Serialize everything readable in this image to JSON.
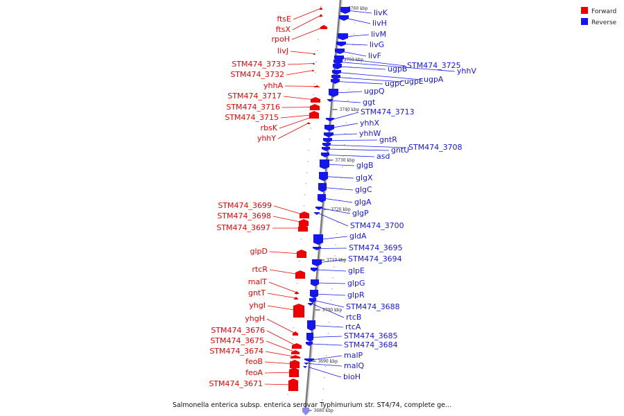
{
  "legend": {
    "forward_label": "Forward",
    "reverse_label": "Reverse",
    "forward_color": "#ee0000",
    "reverse_color": "#1515ee"
  },
  "caption": "Salmonella enterica subsp. enterica serovar Typhimurium str. ST4/74, complete ge...",
  "ticks": [
    "3760 kbp",
    "3750 kbp",
    "3740 kbp",
    "3730 kbp",
    "3720 kbp",
    "3710 kbp",
    "3700 kbp",
    "3690 kbp",
    "3680 kbp"
  ],
  "reverse_genes": [
    "livK",
    "livH",
    "livM",
    "livG",
    "livF",
    "STM474_3725",
    "yhhV",
    "ugpB",
    "ugpA",
    "ugpE",
    "ugpC",
    "ugpQ",
    "ggt",
    "STM474_3713",
    "yhhX",
    "yhhW",
    "gntR",
    "STM474_3708",
    "gntU",
    "asd",
    "glgB",
    "glgX",
    "glgC",
    "glgA",
    "glgP",
    "STM474_3700",
    "gldA",
    "STM474_3695",
    "STM474_3694",
    "glpE",
    "glpG",
    "glpR",
    "STM474_3688",
    "rtcB",
    "rtcA",
    "STM474_3685",
    "STM474_3684",
    "malP",
    "malQ",
    "bioH"
  ],
  "forward_genes": [
    "ftsE",
    "ftsX",
    "rpoH",
    "livJ",
    "STM474_3733",
    "STM474_3732",
    "yhhA",
    "STM474_3717",
    "STM474_3716",
    "STM474_3715",
    "rbsK",
    "yhhY",
    "STM474_3699",
    "STM474_3698",
    "STM474_3697",
    "glpD",
    "rtcR",
    "malT",
    "gntT",
    "yhgI",
    "yhgH",
    "STM474_3676",
    "STM474_3675",
    "STM474_3674",
    "feoB",
    "feoA",
    "STM474_3671"
  ]
}
